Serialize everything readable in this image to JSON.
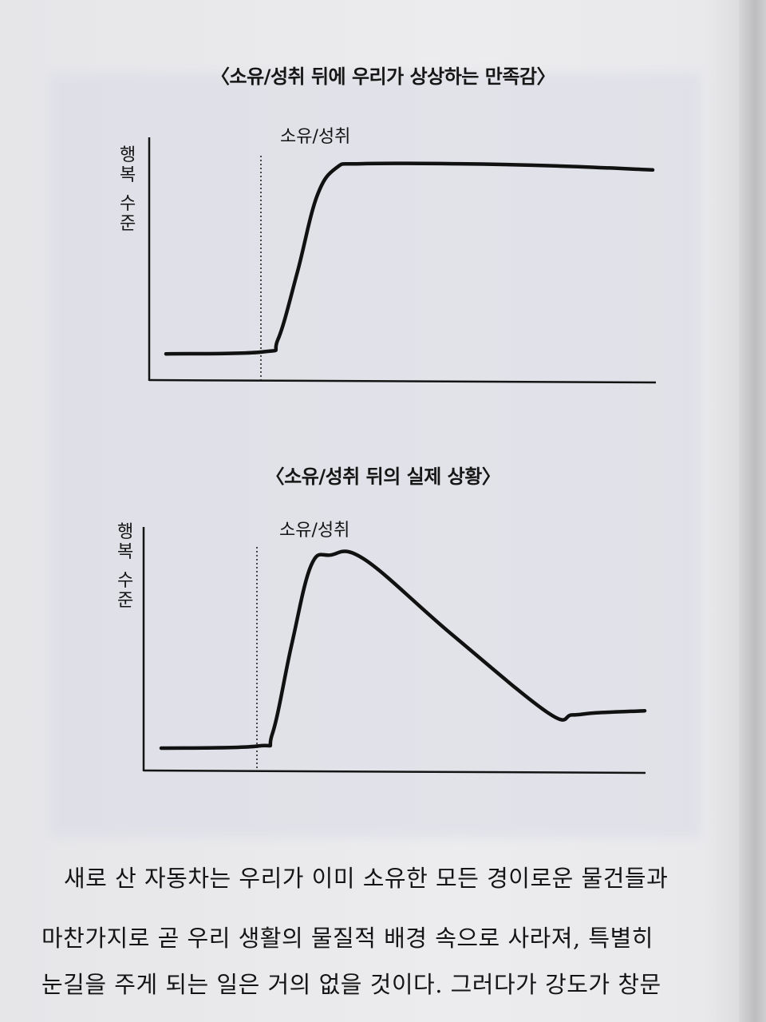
{
  "charts": {
    "imagined": {
      "title": "〈소유/성취 뒤에 우리가 상상하는 만족감〉",
      "event_label": "소유/성취",
      "ylabel": "행복 수준"
    },
    "actual": {
      "title": "〈소유/성취 뒤의 실제 상황〉",
      "event_label": "소유/성취",
      "ylabel": "행복 수준"
    }
  },
  "chart_data": [
    {
      "type": "line",
      "title": "〈소유/성취 뒤에 우리가 상상하는 만족감〉",
      "ylabel": "행복 수준",
      "xlabel": "",
      "annotations": [
        "소유/성취"
      ],
      "x": [
        0,
        0.2,
        0.23,
        0.27,
        0.31,
        0.35,
        0.4,
        0.6,
        0.8,
        1.0
      ],
      "values": [
        0.05,
        0.06,
        0.12,
        0.45,
        0.82,
        0.96,
        0.98,
        0.98,
        0.97,
        0.95
      ],
      "xlim": [
        0,
        1
      ],
      "ylim": [
        0,
        1
      ],
      "grid": false,
      "event_x": 0.22
    },
    {
      "type": "line",
      "title": "〈소유/성취 뒤의 실제 상황〉",
      "ylabel": "행복 수준",
      "xlabel": "",
      "annotations": [
        "소유/성취"
      ],
      "x": [
        0,
        0.2,
        0.23,
        0.27,
        0.31,
        0.35,
        0.42,
        0.6,
        0.8,
        0.85,
        0.9,
        1.0
      ],
      "values": [
        0.05,
        0.06,
        0.12,
        0.55,
        0.93,
        0.98,
        0.96,
        0.6,
        0.22,
        0.21,
        0.22,
        0.23
      ],
      "xlim": [
        0,
        1
      ],
      "ylim": [
        0,
        1
      ],
      "grid": false,
      "event_x": 0.22
    }
  ],
  "body": {
    "line1": "새로 산 자동차는 우리가 이미 소유한 모든 경이로운 물건들과",
    "line2": "마찬가지로 곧 우리 생활의 물질적 배경 속으로 사라져, 특별히",
    "line3": "눈길을 주게 되는 일은 거의 없을 것이다. 그러다가 강도가 창문"
  }
}
